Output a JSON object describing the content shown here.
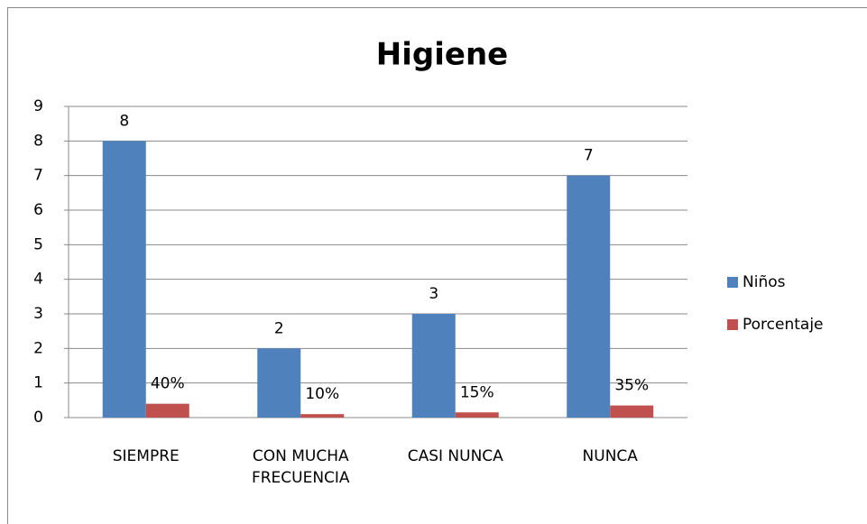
{
  "chart_data": {
    "type": "bar",
    "title": "Higiene",
    "categories": [
      "SIEMPRE",
      "CON MUCHA FRECUENCIA",
      "CASI NUNCA",
      "NUNCA"
    ],
    "series": [
      {
        "name": "Niños",
        "color": "#4f81bd",
        "values": [
          8,
          2,
          3,
          7
        ]
      },
      {
        "name": "Porcentaje",
        "color": "#c0504d",
        "values": [
          0.4,
          0.1,
          0.15,
          0.35
        ],
        "value_labels": [
          "40%",
          "10%",
          "15%",
          "35%"
        ]
      }
    ],
    "ylim": [
      0,
      9
    ],
    "yticks": [
      0,
      1,
      2,
      3,
      4,
      5,
      6,
      7,
      8,
      9
    ],
    "grid": true,
    "legend": "right"
  }
}
